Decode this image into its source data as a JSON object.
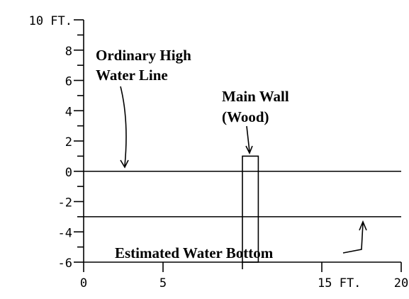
{
  "chart_data": {
    "type": "profile",
    "xlim": [
      0,
      20
    ],
    "ylim": [
      -6,
      10
    ],
    "xticks": [
      0,
      5,
      {
        "value": 15,
        "label": "15 FT."
      },
      20
    ],
    "xminor_ticks": [
      10
    ],
    "yticks": [
      {
        "value": 10,
        "label": "10 FT."
      },
      8,
      6,
      4,
      2,
      0,
      -2,
      -4,
      -6
    ],
    "yminor_ticks": [
      9,
      7,
      5,
      3,
      1,
      -1,
      -3,
      -5
    ],
    "series": [
      {
        "x": [
          0,
          20
        ],
        "values": [
          0,
          0
        ]
      },
      {
        "x": [
          0,
          20
        ],
        "values": [
          -3,
          -3
        ]
      }
    ],
    "wall": {
      "x": [
        10,
        11
      ],
      "y": [
        -6,
        1
      ]
    },
    "annotations": {
      "high_water": [
        "Ordinary High",
        "Water Line"
      ],
      "wall": [
        "Main Wall",
        "(Wood)"
      ],
      "bottom": "Estimated Water Bottom"
    }
  }
}
